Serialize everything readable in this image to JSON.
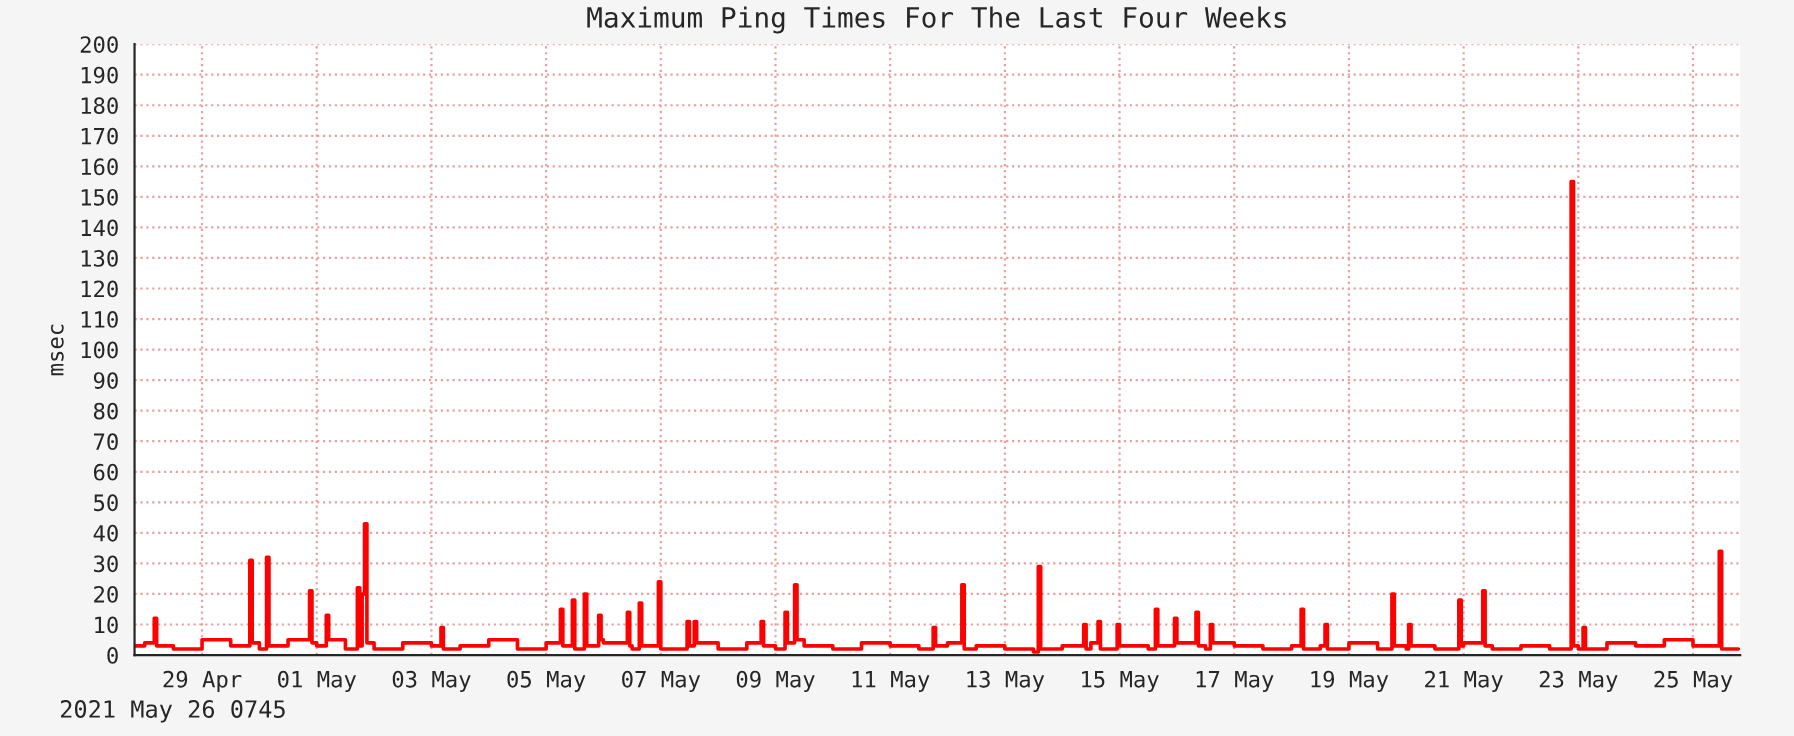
{
  "chart_data": {
    "type": "step",
    "title": "Maximum Ping Times For The Last Four Weeks",
    "ylabel": "msec",
    "annotations": [
      "2021 May 26 0745"
    ],
    "x": [
      "2021-04-28T08:00",
      "2021-04-28T12:00",
      "2021-04-28T16:00",
      "2021-04-28T17:00",
      "2021-04-29T00:00",
      "2021-04-29T12:00",
      "2021-04-30T00:00",
      "2021-04-30T08:00",
      "2021-04-30T09:00",
      "2021-04-30T12:00",
      "2021-04-30T15:00",
      "2021-04-30T16:00",
      "2021-05-01T00:00",
      "2021-05-01T09:00",
      "2021-05-01T10:00",
      "2021-05-01T12:00",
      "2021-05-01T16:00",
      "2021-05-01T17:00",
      "2021-05-02T00:00",
      "2021-05-02T05:00",
      "2021-05-02T06:00",
      "2021-05-02T07:00",
      "2021-05-02T08:00",
      "2021-05-02T09:00",
      "2021-05-02T12:00",
      "2021-05-03T00:00",
      "2021-05-03T12:00",
      "2021-05-03T16:00",
      "2021-05-03T17:00",
      "2021-05-04T00:00",
      "2021-05-04T12:00",
      "2021-05-05T00:00",
      "2021-05-05T12:00",
      "2021-05-05T18:00",
      "2021-05-05T19:00",
      "2021-05-05T23:00",
      "2021-05-06T00:00",
      "2021-05-06T04:00",
      "2021-05-06T05:00",
      "2021-05-06T10:00",
      "2021-05-06T11:00",
      "2021-05-06T12:00",
      "2021-05-06T22:00",
      "2021-05-06T23:00",
      "2021-05-07T00:00",
      "2021-05-07T03:00",
      "2021-05-07T04:00",
      "2021-05-07T11:00",
      "2021-05-07T12:00",
      "2021-05-07T23:00",
      "2021-05-08T00:00",
      "2021-05-08T02:00",
      "2021-05-08T03:00",
      "2021-05-08T12:00",
      "2021-05-09T00:00",
      "2021-05-09T06:00",
      "2021-05-09T07:00",
      "2021-05-09T12:00",
      "2021-05-09T16:00",
      "2021-05-09T17:00",
      "2021-05-09T20:00",
      "2021-05-09T21:00",
      "2021-05-10T00:00",
      "2021-05-10T12:00",
      "2021-05-11T00:00",
      "2021-05-11T12:00",
      "2021-05-12T00:00",
      "2021-05-12T06:00",
      "2021-05-12T07:00",
      "2021-05-12T12:00",
      "2021-05-12T18:00",
      "2021-05-12T19:00",
      "2021-05-13T00:00",
      "2021-05-13T12:00",
      "2021-05-14T00:00",
      "2021-05-14T02:00",
      "2021-05-14T03:00",
      "2021-05-14T12:00",
      "2021-05-14T21:00",
      "2021-05-14T22:00",
      "2021-05-15T00:00",
      "2021-05-15T03:00",
      "2021-05-15T04:00",
      "2021-05-15T11:00",
      "2021-05-15T12:00",
      "2021-05-16T00:00",
      "2021-05-16T03:00",
      "2021-05-16T04:00",
      "2021-05-16T11:00",
      "2021-05-16T12:00",
      "2021-05-16T20:00",
      "2021-05-16T21:00",
      "2021-05-17T00:00",
      "2021-05-17T02:00",
      "2021-05-17T03:00",
      "2021-05-17T12:00",
      "2021-05-18T00:00",
      "2021-05-18T12:00",
      "2021-05-18T16:00",
      "2021-05-18T17:00",
      "2021-05-19T00:00",
      "2021-05-19T02:00",
      "2021-05-19T03:00",
      "2021-05-19T12:00",
      "2021-05-20T00:00",
      "2021-05-20T06:00",
      "2021-05-20T07:00",
      "2021-05-20T12:00",
      "2021-05-20T13:00",
      "2021-05-20T14:00",
      "2021-05-21T00:00",
      "2021-05-21T10:00",
      "2021-05-21T11:00",
      "2021-05-21T12:00",
      "2021-05-21T20:00",
      "2021-05-21T21:00",
      "2021-05-22T00:00",
      "2021-05-22T12:00",
      "2021-05-23T00:00",
      "2021-05-23T09:00",
      "2021-05-23T10:00",
      "2021-05-23T12:00",
      "2021-05-23T14:00",
      "2021-05-23T15:00",
      "2021-05-24T00:00",
      "2021-05-24T12:00",
      "2021-05-25T00:00",
      "2021-05-25T12:00",
      "2021-05-25T23:00",
      "2021-05-26T00:00",
      "2021-05-26T07:00"
    ],
    "series": [
      {
        "color": "#ff0000",
        "values": [
          3,
          4,
          12,
          3,
          2,
          5,
          3,
          31,
          4,
          2,
          32,
          3,
          5,
          21,
          4,
          3,
          13,
          5,
          2,
          22,
          3,
          20,
          43,
          4,
          2,
          4,
          3,
          9,
          2,
          3,
          5,
          2,
          4,
          15,
          3,
          18,
          2,
          20,
          3,
          13,
          5,
          4,
          14,
          3,
          2,
          17,
          3,
          24,
          2,
          11,
          3,
          11,
          4,
          2,
          4,
          11,
          3,
          2,
          14,
          4,
          23,
          5,
          3,
          2,
          4,
          3,
          2,
          9,
          3,
          4,
          23,
          2,
          3,
          2,
          1,
          29,
          2,
          3,
          10,
          2,
          4,
          11,
          2,
          10,
          3,
          2,
          15,
          3,
          12,
          4,
          14,
          3,
          2,
          10,
          4,
          3,
          2,
          3,
          15,
          2,
          3,
          10,
          2,
          4,
          2,
          20,
          3,
          2,
          10,
          3,
          2,
          18,
          3,
          4,
          21,
          3,
          2,
          3,
          2,
          155,
          3,
          2,
          9,
          2,
          4,
          3,
          5,
          3,
          34,
          2,
          2
        ]
      }
    ],
    "xlim": [
      "2021-04-28T07:45",
      "2021-05-26T07:45"
    ],
    "xticks": [
      {
        "value": "2021-04-29T12:00",
        "label": "29 Apr"
      },
      {
        "value": "2021-05-01T12:00",
        "label": "01 May"
      },
      {
        "value": "2021-05-03T12:00",
        "label": "03 May"
      },
      {
        "value": "2021-05-05T12:00",
        "label": "05 May"
      },
      {
        "value": "2021-05-07T12:00",
        "label": "07 May"
      },
      {
        "value": "2021-05-09T12:00",
        "label": "09 May"
      },
      {
        "value": "2021-05-11T12:00",
        "label": "11 May"
      },
      {
        "value": "2021-05-13T12:00",
        "label": "13 May"
      },
      {
        "value": "2021-05-15T12:00",
        "label": "15 May"
      },
      {
        "value": "2021-05-17T12:00",
        "label": "17 May"
      },
      {
        "value": "2021-05-19T12:00",
        "label": "19 May"
      },
      {
        "value": "2021-05-21T12:00",
        "label": "21 May"
      },
      {
        "value": "2021-05-23T12:00",
        "label": "23 May"
      },
      {
        "value": "2021-05-25T12:00",
        "label": "25 May"
      }
    ],
    "ylim": [
      0,
      200
    ],
    "yticks": [
      0,
      10,
      20,
      30,
      40,
      50,
      60,
      70,
      80,
      90,
      100,
      110,
      120,
      130,
      140,
      150,
      160,
      170,
      180,
      190,
      200
    ],
    "grid": true
  }
}
